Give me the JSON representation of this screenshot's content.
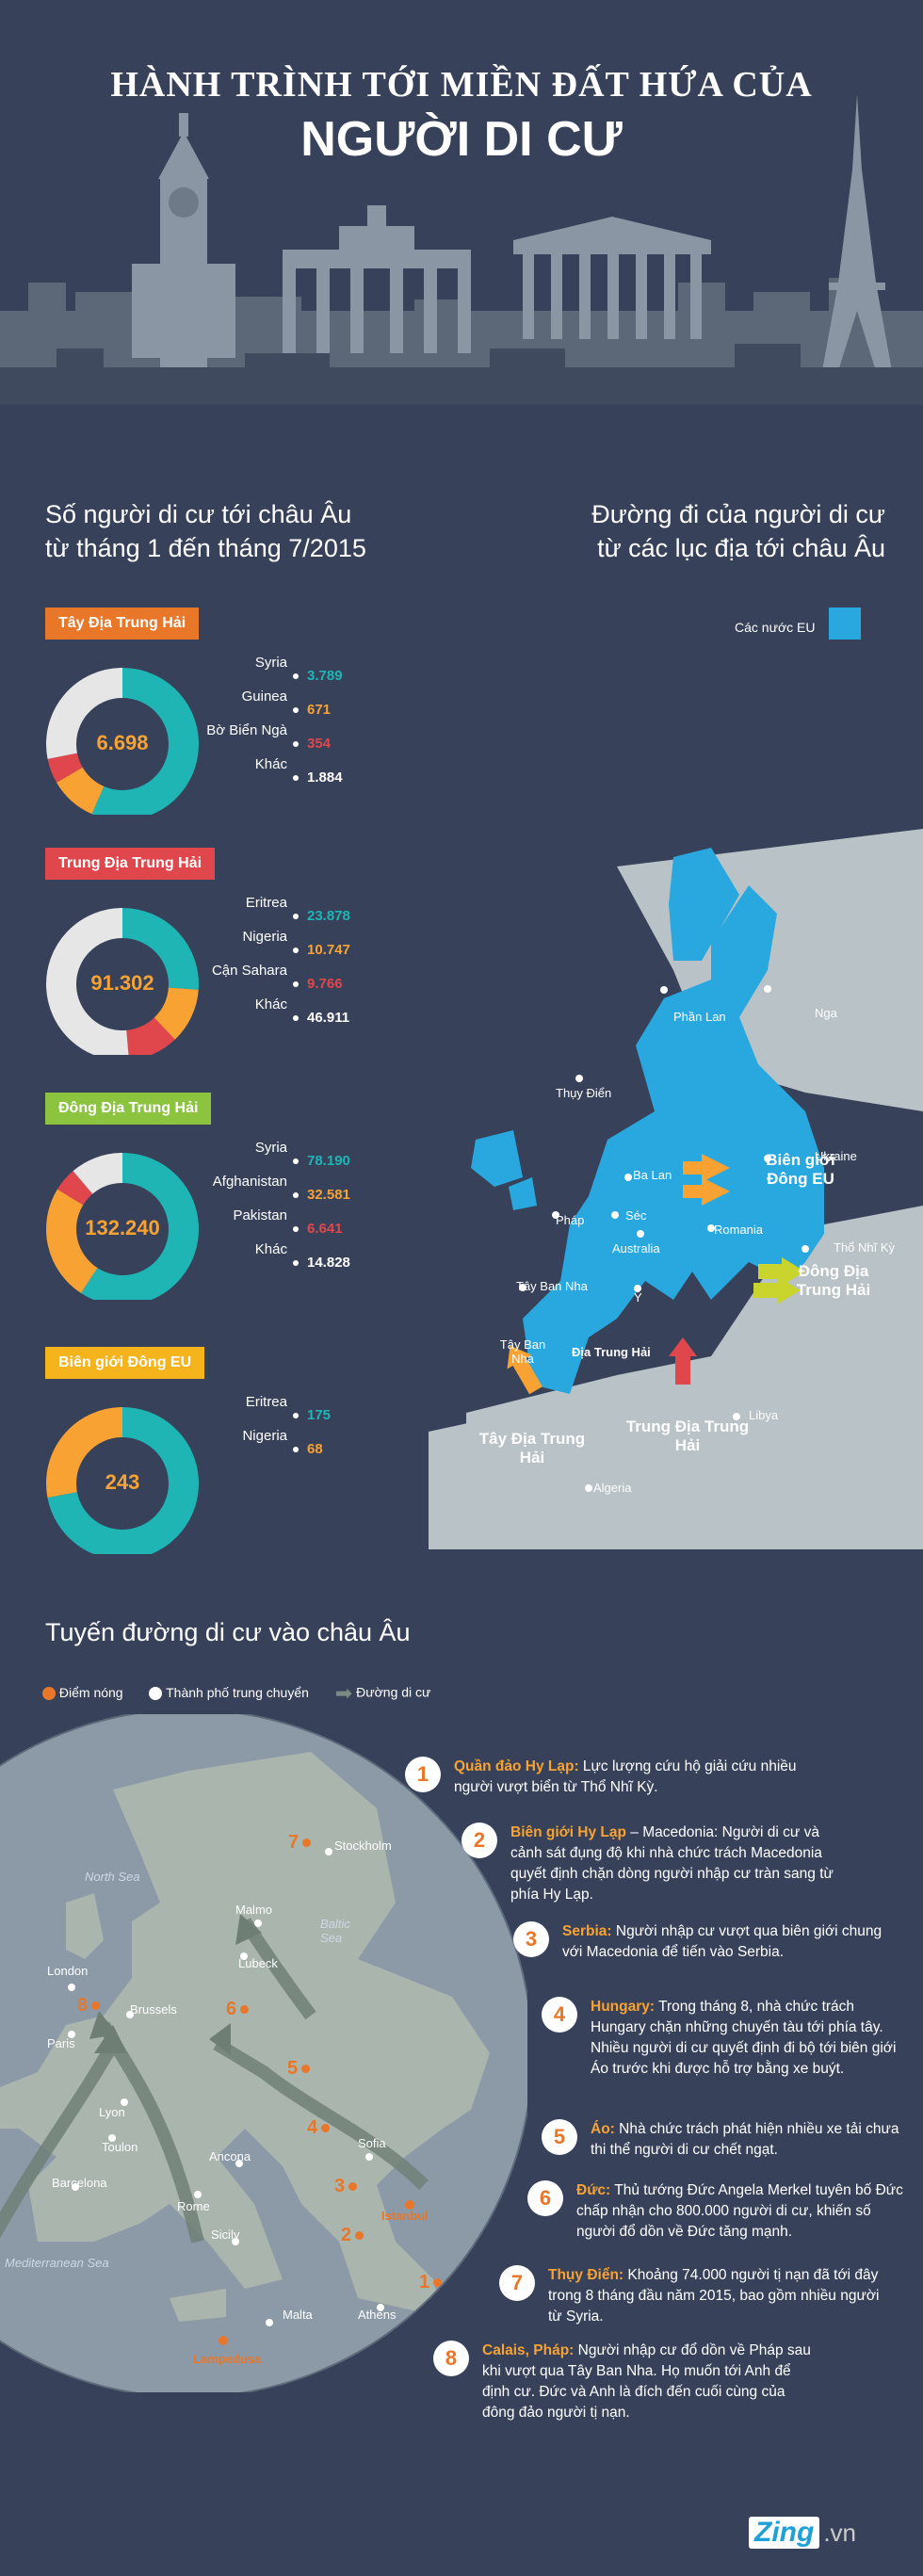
{
  "title": {
    "line1": "HÀNH TRÌNH TỚI MIỀN ĐẤT HỨA CỦA",
    "line2": "NGƯỜI DI CƯ"
  },
  "colors": {
    "bg": "#37425a",
    "teal": "#1fb5b5",
    "orange": "#f7a233",
    "red": "#e0474c",
    "gray": "#e6e6e6",
    "eu_blue": "#29a8e0",
    "brand_orange": "#e8772a"
  },
  "left_header": {
    "line1": "Số người di cư tới châu Âu",
    "line2": "từ tháng 1 đến tháng 7/2015"
  },
  "right_header": {
    "line1": "Đường đi của người di cư",
    "line2": "từ các lục địa tới châu Âu"
  },
  "donuts": [
    {
      "badge": "Tây Địa Trung Hải",
      "badge_color": "#e8772a",
      "total": "6.698",
      "items": [
        {
          "label": "Syria",
          "value": "3.789",
          "color": "#1fb5b5"
        },
        {
          "label": "Guinea",
          "value": "671",
          "color": "#f7a233"
        },
        {
          "label": "Bờ Biển Ngà",
          "value": "354",
          "color": "#e0474c"
        },
        {
          "label": "Khác",
          "value": "1.884",
          "color": "#e6e6e6"
        }
      ]
    },
    {
      "badge": "Trung Địa Trung Hải",
      "badge_color": "#e0474c",
      "total": "91.302",
      "items": [
        {
          "label": "Eritrea",
          "value": "23.878",
          "color": "#1fb5b5"
        },
        {
          "label": "Nigeria",
          "value": "10.747",
          "color": "#f7a233"
        },
        {
          "label": "Cận Sahara",
          "value": "9.766",
          "color": "#e0474c"
        },
        {
          "label": "Khác",
          "value": "46.911",
          "color": "#e6e6e6"
        }
      ]
    },
    {
      "badge": "Đông Địa Trung Hải",
      "badge_color": "#8cc43f",
      "total": "132.240",
      "items": [
        {
          "label": "Syria",
          "value": "78.190",
          "color": "#1fb5b5"
        },
        {
          "label": "Afghanistan",
          "value": "32.581",
          "color": "#f7a233"
        },
        {
          "label": "Pakistan",
          "value": "6.641",
          "color": "#e0474c"
        },
        {
          "label": "Khác",
          "value": "14.828",
          "color": "#e6e6e6"
        }
      ]
    },
    {
      "badge": "Biên giới Đông EU",
      "badge_color": "#f5b31c",
      "total": "243",
      "items": [
        {
          "label": "Eritrea",
          "value": "175",
          "color": "#1fb5b5"
        },
        {
          "label": "Nigeria",
          "value": "68",
          "color": "#f7a233"
        }
      ]
    }
  ],
  "eu_legend": "Các nước EU",
  "eu_map": {
    "countries": [
      "Phần Lan",
      "Nga",
      "Thụy Điển",
      "Ba Lan",
      "Ukraine",
      "Séc",
      "Pháp",
      "Australia",
      "Romania",
      "Thổ Nhĩ Kỳ",
      "Tây Ban Nha",
      "Ý",
      "Libya",
      "Algeria"
    ],
    "sea": "Địa Trung Hải",
    "spain_label": "Tây Ban Nha",
    "arrows": {
      "east_eu": "Biên giới Đông EU",
      "east_med": "Đông Địa Trung Hải",
      "central_med": "Trung Địa Trung Hải",
      "west_med": "Tây Địa Trung Hải"
    }
  },
  "routes_title": "Tuyến đường di cư vào châu Âu",
  "routes_legend": {
    "hotspot": "Điểm nóng",
    "hub": "Thành phố trung chuyển",
    "route": "Đường di cư"
  },
  "route_map": {
    "seas": [
      "North Sea",
      "Baltic Sea",
      "Mediterranean Sea"
    ],
    "cities": [
      "Stockholm",
      "Malmo",
      "London",
      "Lubeck",
      "Brussels",
      "Paris",
      "Lyon",
      "Toulon",
      "Barcelona",
      "Ancona",
      "Rome",
      "Sofia",
      "Sicily",
      "Malta",
      "Athens"
    ],
    "hotspots": [
      "Lampedusa",
      "Istanbul"
    ]
  },
  "steps": [
    {
      "num": "1",
      "title": "Quần đảo Hy Lạp:",
      "text": " Lực lượng cứu hộ giải cứu nhiều người vượt biển từ Thổ Nhĩ Kỳ."
    },
    {
      "num": "2",
      "title": "Biên giới Hy Lạp",
      "text": " – Macedonia: Người di cư và cảnh sát đụng độ khi nhà chức trách Macedonia quyết định chặn dòng người nhập cư tràn sang từ phía Hy Lạp."
    },
    {
      "num": "3",
      "title": "Serbia:",
      "text": " Người nhập cư vượt qua biên giới chung với Macedonia để tiến vào Serbia."
    },
    {
      "num": "4",
      "title": "Hungary:",
      "text": " Trong tháng 8, nhà chức trách Hungary chặn những chuyến tàu tới phía tây. Nhiều người di cư quyết định đi bộ tới biên giới Áo trước khi được hỗ trợ bằng xe buýt."
    },
    {
      "num": "5",
      "title": "Áo:",
      "text": " Nhà chức trách phát hiện nhiều xe tải chưa thi thể người di cư chết ngạt."
    },
    {
      "num": "6",
      "title": "Đức:",
      "text": " Thủ tướng Đức Angela Merkel tuyên bố Đức chấp nhận cho 800.000 người di cư, khiến số người đổ dồn về Đức tăng mạnh."
    },
    {
      "num": "7",
      "title": "Thụy Điển:",
      "text": " Khoảng 74.000 người tị nạn đã tới đây trong 8 tháng đầu năm 2015, bao gồm nhiều người từ Syria."
    },
    {
      "num": "8",
      "title": "Calais, Pháp:",
      "text": " Người nhập cư đổ dồn về Pháp sau khi vượt qua Tây Ban Nha. Họ muốn tới Anh để định cư. Đức và Anh là đích đến cuối cùng của đông đảo người tị nạn."
    }
  ],
  "logo": {
    "brand": "Zing",
    "suffix": ".vn"
  }
}
